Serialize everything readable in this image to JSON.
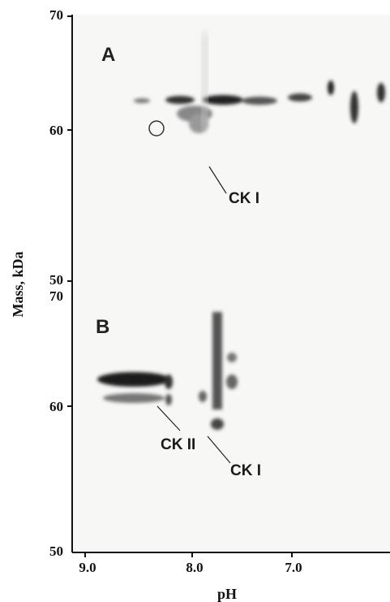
{
  "figure": {
    "y_axis_label": "Mass, kDa",
    "x_axis_label": "pH",
    "x_ticks": [
      "9.0",
      "8.0",
      "7.0"
    ],
    "panels": [
      {
        "label": "A",
        "y_ticks": [
          "70",
          "60",
          "50"
        ],
        "annotations": [
          "CK I"
        ]
      },
      {
        "label": "B",
        "y_ticks": [
          "70",
          "60",
          "50"
        ],
        "annotations": [
          "CK II",
          "CK I"
        ]
      }
    ]
  }
}
